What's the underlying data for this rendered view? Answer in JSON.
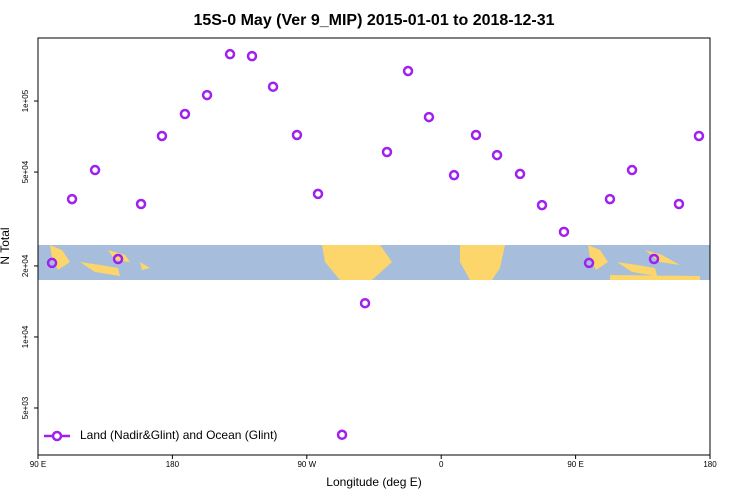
{
  "chart_data": {
    "type": "scatter",
    "title": "15S-0 May (Ver 9_MIP)   2015-01-01 to 2018-12-31",
    "xlabel": "Longitude (deg E)",
    "ylabel": "N Total",
    "x": [
      99.4,
      112.8,
      128.2,
      143.6,
      159.0,
      173.0,
      188.4,
      203.2,
      218.6,
      233.3,
      247.4,
      263.4,
      277.5,
      293.6,
      309.0,
      323.7,
      337.8,
      351.8,
      368.6,
      383.3,
      397.4,
      412.8,
      427.5,
      442.2,
      459.0,
      473.0,
      487.8,
      502.5,
      519.2,
      532.6
    ],
    "series": [
      {
        "name": "Land (Nadir&Glint) and Ocean (Glint)",
        "color": "#a020f0",
        "values": [
          20600,
          38400,
          51000,
          21400,
          36600,
          71100,
          88100,
          106000,
          158000,
          155000,
          115000,
          71800,
          40400,
          3850,
          13900,
          60800,
          134000,
          85500,
          48500,
          71800,
          59000,
          49100,
          36200,
          27900,
          20600,
          38400,
          51000,
          21400,
          36600,
          71100
        ]
      }
    ],
    "xlim": [
      90,
      540
    ],
    "xticks": [
      {
        "value": 90,
        "label": "90 E"
      },
      {
        "value": 180,
        "label": "180"
      },
      {
        "value": 270,
        "label": "90 W"
      },
      {
        "value": 360,
        "label": "0"
      },
      {
        "value": 450,
        "label": "90 E"
      },
      {
        "value": 540,
        "label": "180"
      }
    ],
    "ylim": [
      3160,
      185000
    ],
    "yticks": [
      {
        "value": 5000,
        "label": "5e+03"
      },
      {
        "value": 10000,
        "label": "1e+04"
      },
      {
        "value": 20000,
        "label": "2e+04"
      },
      {
        "value": 50000,
        "label": "5e+04"
      },
      {
        "value": 100000,
        "label": "1e+05"
      }
    ],
    "log_y": true,
    "legend": "bottom-left"
  }
}
